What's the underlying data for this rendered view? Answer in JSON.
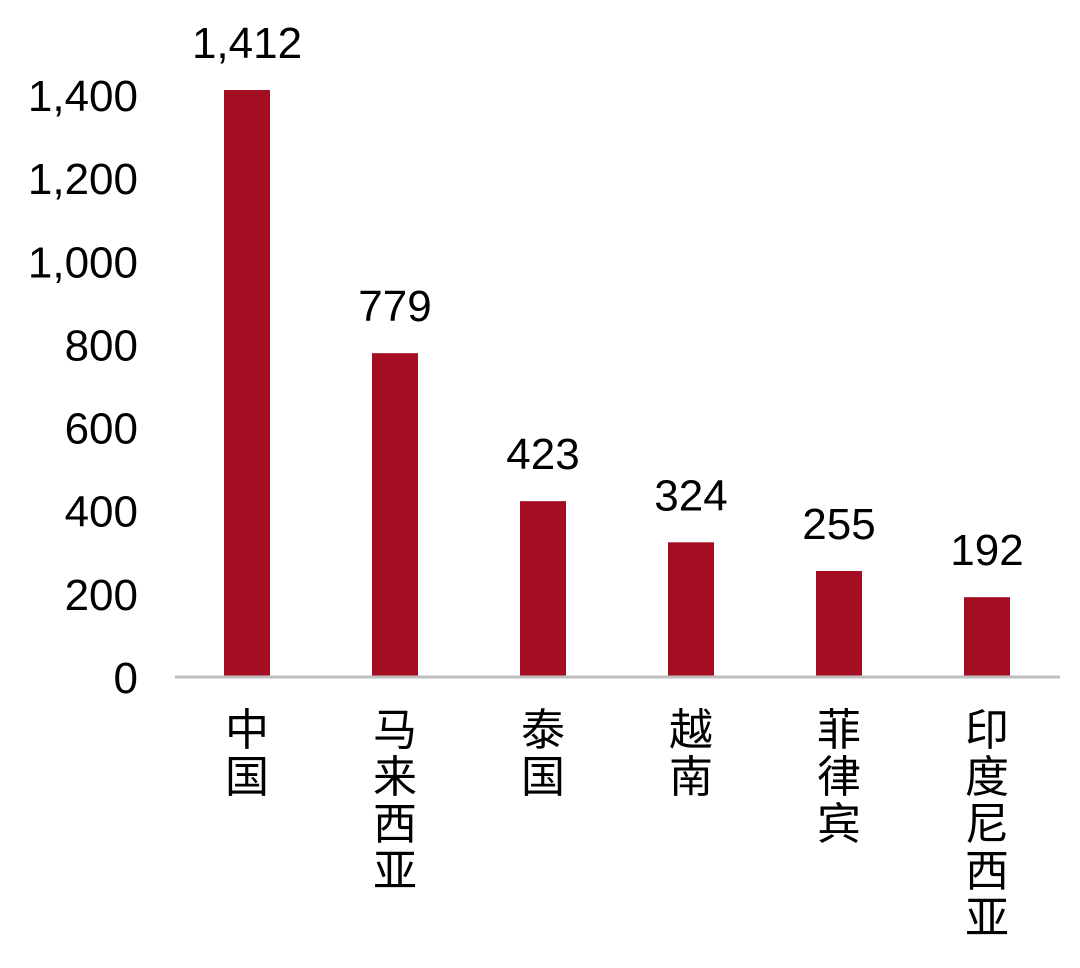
{
  "chart_data": {
    "type": "bar",
    "title": "",
    "xlabel": "",
    "ylabel": "",
    "categories": [
      "中国",
      "马来西亚",
      "泰国",
      "越南",
      "菲律宾",
      "印度尼西亚"
    ],
    "values": [
      1412,
      779,
      423,
      324,
      255,
      192
    ],
    "data_labels": [
      "1,412",
      "779",
      "423",
      "324",
      "255",
      "192"
    ],
    "yticks": [
      0,
      200,
      400,
      600,
      800,
      1000,
      1200,
      1400
    ],
    "ytick_labels": [
      "0",
      "200",
      "400",
      "600",
      "800",
      "1,000",
      "1,200",
      "1,400"
    ],
    "ylim": [
      0,
      1400
    ],
    "grid": false,
    "legend": "none",
    "colors": {
      "bar": "#A50D22",
      "axis": "#BFBFBF",
      "text": "#000000"
    }
  }
}
